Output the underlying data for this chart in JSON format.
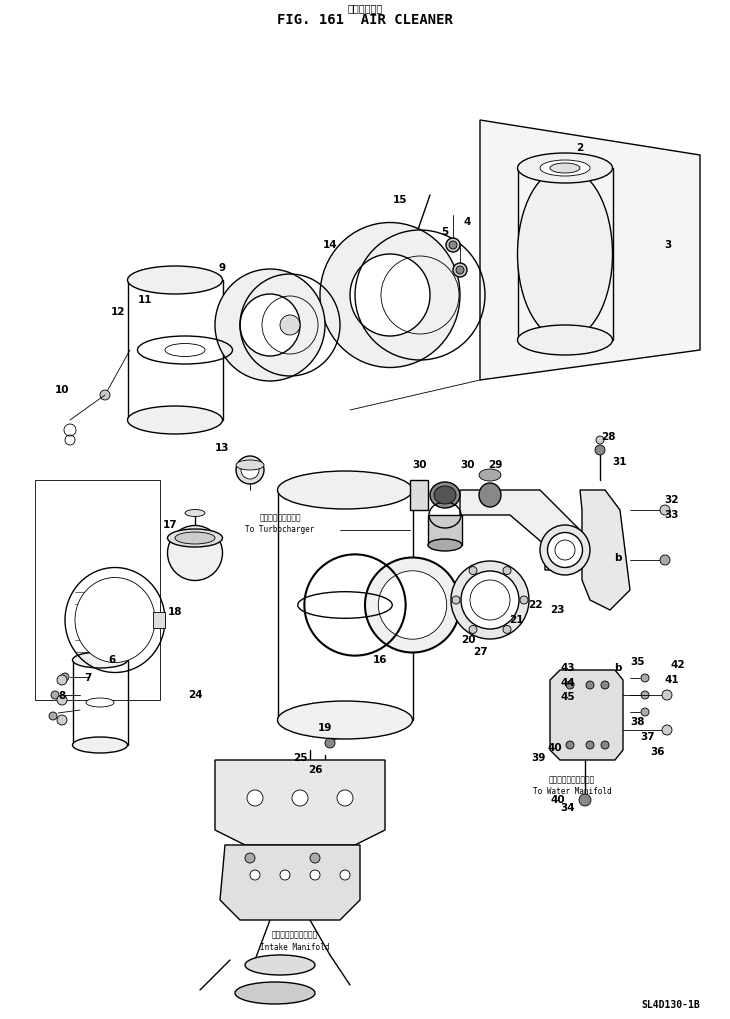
{
  "title_japanese": "エアクリーナ",
  "title_english": "FIG. 161  AIR CLEANER",
  "model_code": "SL4D130-1B",
  "bg_color": "#ffffff",
  "lc": "#000000"
}
